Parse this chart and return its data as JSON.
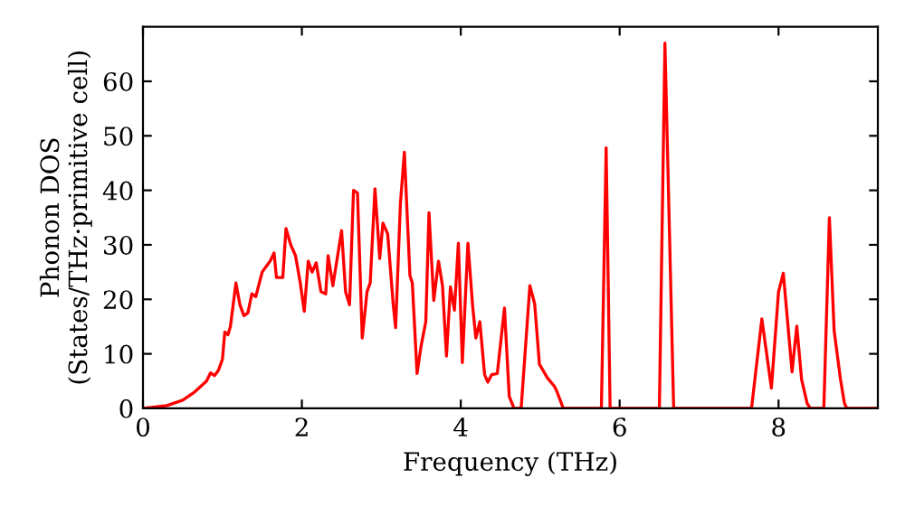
{
  "chart_data": {
    "type": "line",
    "xlabel": "Frequency (THz)",
    "ylabel": "Phonon DOS\n(States/THz·primitive cell)",
    "xlim": [
      0,
      9.25
    ],
    "ylim": [
      0,
      70
    ],
    "xticks": [
      0,
      2,
      4,
      6,
      8
    ],
    "yticks": [
      0,
      10,
      20,
      30,
      40,
      50,
      60
    ],
    "grid": false,
    "legend": false,
    "marker": "none",
    "line_style": "solid",
    "series": [
      {
        "color": "#ff0000",
        "x": [
          0,
          0.3,
          0.5,
          0.65,
          0.8,
          0.85,
          0.9,
          0.95,
          1.0,
          1.03,
          1.07,
          1.1,
          1.17,
          1.22,
          1.27,
          1.32,
          1.37,
          1.42,
          1.5,
          1.55,
          1.6,
          1.65,
          1.68,
          1.72,
          1.76,
          1.8,
          1.86,
          1.92,
          1.98,
          2.03,
          2.08,
          2.13,
          2.18,
          2.24,
          2.3,
          2.33,
          2.39,
          2.5,
          2.55,
          2.6,
          2.65,
          2.7,
          2.76,
          2.82,
          2.86,
          2.92,
          2.98,
          3.02,
          3.08,
          3.15,
          3.18,
          3.24,
          3.29,
          3.36,
          3.39,
          3.45,
          3.5,
          3.56,
          3.6,
          3.66,
          3.72,
          3.77,
          3.82,
          3.87,
          3.92,
          3.97,
          4.02,
          4.09,
          4.15,
          4.19,
          4.24,
          4.3,
          4.34,
          4.39,
          4.46,
          4.55,
          4.61,
          4.67,
          4.76,
          4.87,
          4.93,
          4.99,
          5.09,
          5.18,
          5.21,
          5.29,
          5.77,
          5.83,
          5.88,
          6.5,
          6.57,
          6.68,
          7.66,
          7.79,
          7.91,
          8.0,
          8.06,
          8.17,
          8.23,
          8.29,
          8.36,
          8.4,
          8.57,
          8.64,
          8.7,
          8.78,
          8.83,
          8.86,
          9.25
        ],
        "values": [
          0,
          0.5,
          1.5,
          3,
          5,
          6.5,
          6,
          7,
          9,
          14,
          13.5,
          15,
          23,
          19,
          17,
          17.5,
          21,
          20.5,
          25,
          26,
          27,
          28.5,
          24,
          24,
          24,
          33,
          30,
          28,
          23,
          17.8,
          27,
          25,
          26.7,
          21.4,
          21,
          28,
          22.5,
          32.6,
          21.4,
          19,
          40,
          39.5,
          12.9,
          21.4,
          23,
          40.3,
          27.5,
          34,
          32,
          19,
          14.8,
          37.5,
          47,
          24.4,
          23,
          6.4,
          11.4,
          15.9,
          35.9,
          19.8,
          27,
          22.5,
          9.6,
          22.3,
          18,
          30.3,
          8.4,
          30.3,
          18.7,
          12.9,
          15.9,
          6.2,
          4.8,
          6.2,
          6.4,
          18.4,
          2.2,
          0,
          0,
          22.5,
          19.2,
          8.1,
          5.6,
          4,
          3.1,
          0,
          0,
          47.8,
          0,
          0,
          67,
          0,
          0,
          16.4,
          3.7,
          21.4,
          24.8,
          6.7,
          15.1,
          5.3,
          0.9,
          0,
          0,
          35,
          14.2,
          5.3,
          0.9,
          0,
          0
        ]
      }
    ]
  }
}
